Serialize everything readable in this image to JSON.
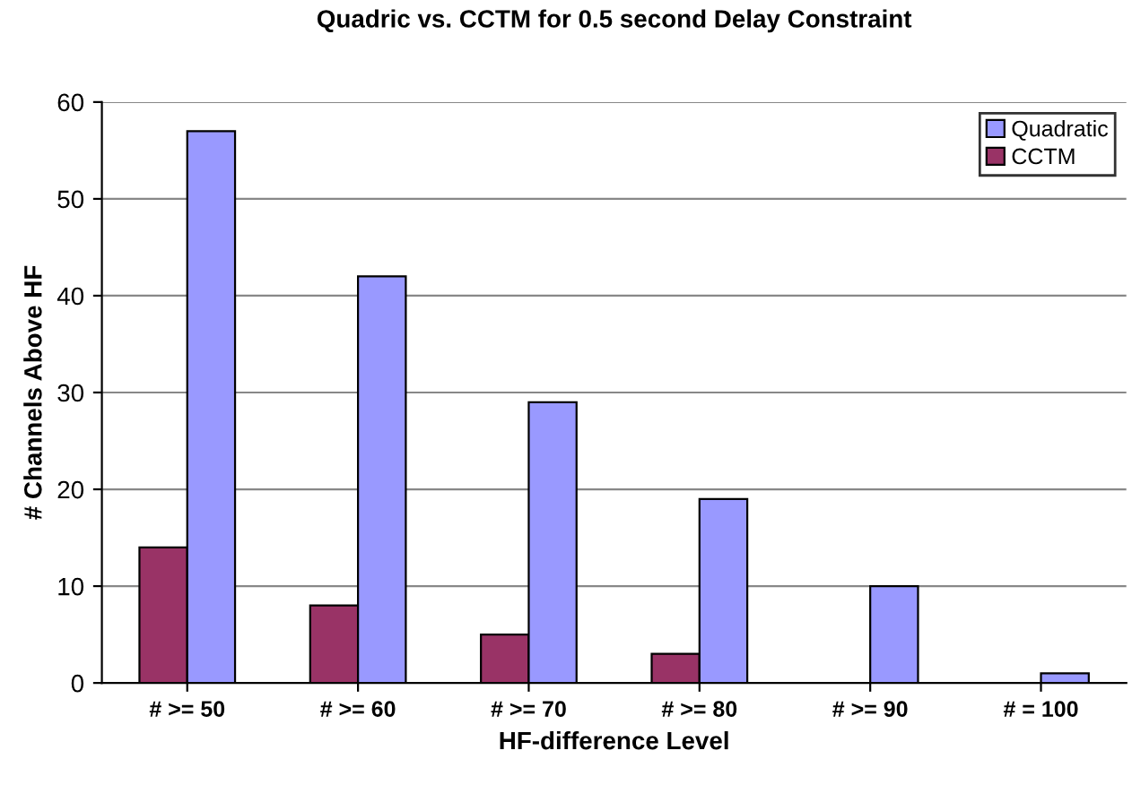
{
  "chart_data": {
    "type": "bar",
    "title": "Quadric vs. CCTM for 0.5 second Delay Constraint",
    "xlabel": "HF-difference Level",
    "ylabel": "# Channels Above HF",
    "categories": [
      "# >= 50",
      "# >= 60",
      "# >= 70",
      "# >= 80",
      "# >= 90",
      "# = 100"
    ],
    "series": [
      {
        "name": "CCTM",
        "color": "#993366",
        "values": [
          14,
          8,
          5,
          3,
          null,
          null
        ]
      },
      {
        "name": "Quadratic",
        "color": "#9999ff",
        "values": [
          57,
          42,
          29,
          19,
          10,
          1
        ]
      }
    ],
    "ylim": [
      0,
      60
    ],
    "yticks": [
      0,
      10,
      20,
      30,
      40,
      50,
      60
    ],
    "grid": "y",
    "legend": "top right"
  }
}
